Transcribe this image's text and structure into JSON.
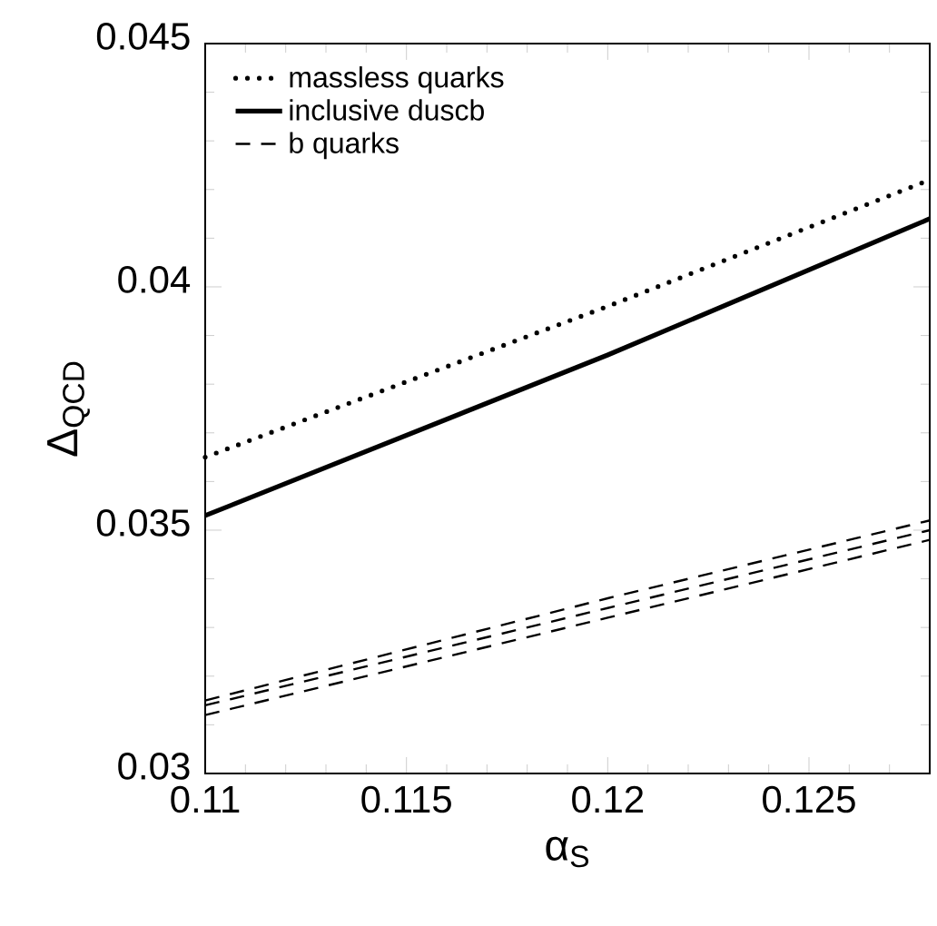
{
  "chart_data": {
    "type": "line",
    "xlabel": "α$_{S}$",
    "ylabel": "Δ$_{QCD}$",
    "xlim": [
      0.11,
      0.128
    ],
    "ylim": [
      0.03,
      0.045
    ],
    "xticks": [
      0.11,
      0.115,
      0.12,
      0.125,
      {
        "value": 0.111,
        "label": null
      },
      {
        "value": 0.112,
        "label": null
      },
      {
        "value": 0.113,
        "label": null
      },
      {
        "value": 0.114,
        "label": null
      },
      {
        "value": 0.116,
        "label": null
      },
      {
        "value": 0.117,
        "label": null
      },
      {
        "value": 0.118,
        "label": null
      },
      {
        "value": 0.119,
        "label": null
      },
      {
        "value": 0.121,
        "label": null
      },
      {
        "value": 0.122,
        "label": null
      },
      {
        "value": 0.123,
        "label": null
      },
      {
        "value": 0.124,
        "label": null
      },
      {
        "value": 0.126,
        "label": null
      },
      {
        "value": 0.127,
        "label": null
      }
    ],
    "yticks": [
      0.03,
      0.035,
      0.04,
      0.045,
      {
        "value": 0.031,
        "label": null
      },
      {
        "value": 0.032,
        "label": null
      },
      {
        "value": 0.033,
        "label": null
      },
      {
        "value": 0.034,
        "label": null
      },
      {
        "value": 0.036,
        "label": null
      },
      {
        "value": 0.037,
        "label": null
      },
      {
        "value": 0.038,
        "label": null
      },
      {
        "value": 0.039,
        "label": null
      },
      {
        "value": 0.041,
        "label": null
      },
      {
        "value": 0.042,
        "label": null
      },
      {
        "value": 0.043,
        "label": null
      },
      {
        "value": 0.044,
        "label": null
      }
    ],
    "legend": "top left",
    "grid": false,
    "series": [
      {
        "name": "massless quarks",
        "color": "#000000",
        "line_style": "dotted",
        "x": [
          0.11,
          0.12,
          0.128
        ],
        "values": [
          0.0365,
          0.0396,
          0.0422
        ]
      },
      {
        "name": "inclusive duscb",
        "color": "#000000",
        "line_style": "solid",
        "x": [
          0.11,
          0.12,
          0.128
        ],
        "values": [
          0.0353,
          0.0386,
          0.0414
        ]
      },
      {
        "name": "b quarks",
        "color": "#000000",
        "line_style": "dashed",
        "x": [
          0.11,
          0.12,
          0.128
        ],
        "values": [
          0.0315,
          0.0336,
          0.0352
        ]
      },
      {
        "color": "#000000",
        "line_style": "dashed",
        "x": [
          0.11,
          0.12,
          0.128
        ],
        "values": [
          0.0314,
          0.0334,
          0.035
        ]
      },
      {
        "color": "#000000",
        "line_style": "dashed",
        "x": [
          0.11,
          0.12,
          0.128
        ],
        "values": [
          0.0312,
          0.0332,
          0.0348
        ]
      }
    ]
  }
}
